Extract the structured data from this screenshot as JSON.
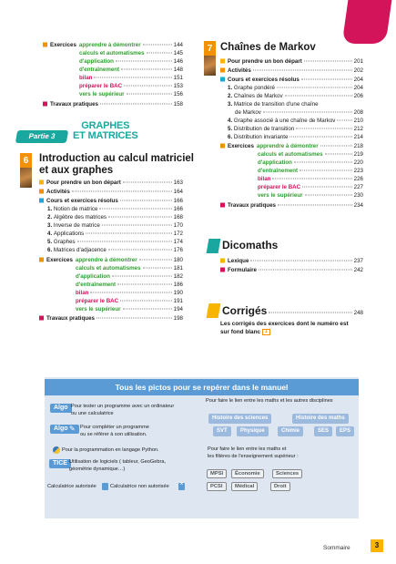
{
  "left_top": {
    "exercices_label": "Exercices",
    "items": [
      {
        "label": "apprendre à démontrer",
        "page": "144"
      },
      {
        "label": "calculs et automatismes",
        "page": "145"
      },
      {
        "label": "d'application",
        "page": "146"
      },
      {
        "label": "d'entraînement",
        "page": "148"
      },
      {
        "label": "bilan",
        "page": "151"
      },
      {
        "label": "préparer le BAC",
        "page": "153"
      },
      {
        "label": "vers le supérieur",
        "page": "156"
      }
    ],
    "travaux": {
      "label": "Travaux pratiques",
      "page": "158"
    }
  },
  "partie": {
    "tab": "Partie 3",
    "title_line1": "GRAPHES",
    "title_line2": "ET MATRICES"
  },
  "chapter6": {
    "number": "6",
    "title_line1": "Introduction au calcul matriciel",
    "title_line2": "et aux graphes",
    "main": [
      {
        "label": "Pour prendre un bon départ",
        "page": "163"
      },
      {
        "label": "Activités",
        "page": "164"
      },
      {
        "label": "Cours et exercices résolus",
        "page": "166"
      }
    ],
    "sections": [
      {
        "num": "1.",
        "label": "Notion de matrice",
        "page": "166"
      },
      {
        "num": "2.",
        "label": "Algèbre des matrices",
        "page": "168"
      },
      {
        "num": "3.",
        "label": "Inverse de matrice",
        "page": "170"
      },
      {
        "num": "4.",
        "label": "Applications",
        "page": "172"
      },
      {
        "num": "5.",
        "label": "Graphes",
        "page": "174"
      },
      {
        "num": "6.",
        "label": "Matrices d'adjacence",
        "page": "176"
      }
    ],
    "exercices_label": "Exercices",
    "exercices": [
      {
        "label": "apprendre à démontrer",
        "page": "180"
      },
      {
        "label": "calculs et automatismes",
        "page": "181"
      },
      {
        "label": "d'application",
        "page": "182"
      },
      {
        "label": "d'entraînement",
        "page": "186"
      },
      {
        "label": "bilan",
        "page": "190"
      },
      {
        "label": "préparer le BAC",
        "page": "191"
      },
      {
        "label": "vers le supérieur",
        "page": "194"
      }
    ],
    "travaux": {
      "label": "Travaux pratiques",
      "page": "198"
    }
  },
  "chapter7": {
    "number": "7",
    "title": "Chaînes de Markov",
    "main": [
      {
        "label": "Pour prendre un bon départ",
        "page": "201"
      },
      {
        "label": "Activités",
        "page": "202"
      },
      {
        "label": "Cours et exercices résolus",
        "page": "204"
      }
    ],
    "sections": [
      {
        "num": "1.",
        "label": "Graphe pondéré",
        "page": "204"
      },
      {
        "num": "2.",
        "label": "Chaînes de Markov",
        "page": "206"
      },
      {
        "num": "3.",
        "label": "Matrice de transition d'une chaîne",
        "page": ""
      },
      {
        "num": "",
        "label": "de Markov",
        "page": "208"
      },
      {
        "num": "4.",
        "label": "Graphe associé à une chaîne de Markov",
        "page": "210"
      },
      {
        "num": "5.",
        "label": "Distribution de transition",
        "page": "212"
      },
      {
        "num": "6.",
        "label": "Distribution invariante",
        "page": "214"
      }
    ],
    "exercices_label": "Exercices",
    "exercices": [
      {
        "label": "apprendre à démontrer",
        "page": "218"
      },
      {
        "label": "calculs et automatismes",
        "page": "219"
      },
      {
        "label": "d'application",
        "page": "220"
      },
      {
        "label": "d'entraînement",
        "page": "223"
      },
      {
        "label": "bilan",
        "page": "226"
      },
      {
        "label": "préparer le BAC",
        "page": "227"
      },
      {
        "label": "vers le supérieur",
        "page": "230"
      }
    ],
    "travaux": {
      "label": "Travaux pratiques",
      "page": "234"
    }
  },
  "dicomaths": {
    "title": "Dicomaths",
    "items": [
      {
        "label": "Lexique",
        "page": "237"
      },
      {
        "label": "Formulaire",
        "page": "242"
      }
    ]
  },
  "corriges": {
    "title": "Corrigés",
    "page": "248",
    "desc_line1": "Les corrigés des exercices dont le numéro est",
    "desc_line2": "sur fond blanc"
  },
  "pictos": {
    "header": "Tous les pictos pour se repérer dans le manuel",
    "algo1_chip": "Algo",
    "algo1_line1": "Pour tester un programme avec un ordinateur",
    "algo1_line2": "ou une calculatrice",
    "algo2_chip": "Algo",
    "algo2_line1": "Pour compléter un programme",
    "algo2_line2": "ou se référer à son utilisation.",
    "python_text": "Pour la programmation en langage Python.",
    "tice_chip": "TICE",
    "tice_line1": "Utilisation de logiciels ( tableur, GeoGebra,",
    "tice_line2": "géométrie dynamique…)",
    "calc_auth": "Calculatrice autorisée",
    "calc_no": "Calculatrice non autorisée",
    "lien_title": "Pour faire le lien entre les maths et les autres disciplines",
    "disciplines": [
      "Histoire des sciences",
      "Histoire des maths",
      "SVT",
      "Physique",
      "Chimie",
      "SES",
      "EPS"
    ],
    "filieres_line1": "Pour faire le lien entre les maths et",
    "filieres_line2": "les filières de l'enseignement supérieur :",
    "filieres": [
      "MPSI",
      "Économie",
      "Sciences",
      "PCSI",
      "Médical",
      "Droit"
    ]
  },
  "footer": {
    "label": "Sommaire",
    "page": "3"
  },
  "colors": {
    "pink": "#d4145a",
    "teal": "#1aa7a0",
    "green": "#2e9e2e",
    "orange": "#f39200",
    "yellow": "#f7b500",
    "blue": "#5b9bd5"
  }
}
